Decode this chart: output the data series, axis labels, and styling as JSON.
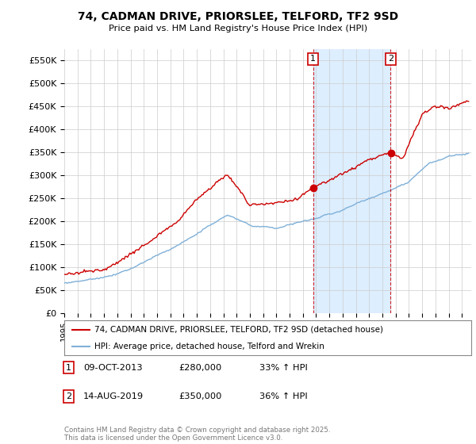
{
  "title": "74, CADMAN DRIVE, PRIORSLEE, TELFORD, TF2 9SD",
  "subtitle": "Price paid vs. HM Land Registry's House Price Index (HPI)",
  "ylabel_ticks": [
    "£0",
    "£50K",
    "£100K",
    "£150K",
    "£200K",
    "£250K",
    "£300K",
    "£350K",
    "£400K",
    "£450K",
    "£500K",
    "£550K"
  ],
  "ytick_vals": [
    0,
    50000,
    100000,
    150000,
    200000,
    250000,
    300000,
    350000,
    400000,
    450000,
    500000,
    550000
  ],
  "ylim": [
    0,
    575000
  ],
  "xlim_start": 1995.0,
  "xlim_end": 2025.7,
  "red_color": "#cc0000",
  "blue_color": "#7fb0d8",
  "shade_color": "#ddeeff",
  "marker1_x": 2013.77,
  "marker1_y": 280000,
  "marker2_x": 2019.62,
  "marker2_y": 350000,
  "legend_red": "74, CADMAN DRIVE, PRIORSLEE, TELFORD, TF2 9SD (detached house)",
  "legend_blue": "HPI: Average price, detached house, Telford and Wrekin",
  "footer": "Contains HM Land Registry data © Crown copyright and database right 2025.\nThis data is licensed under the Open Government Licence v3.0.",
  "background_color": "#ffffff",
  "grid_color": "#cccccc"
}
